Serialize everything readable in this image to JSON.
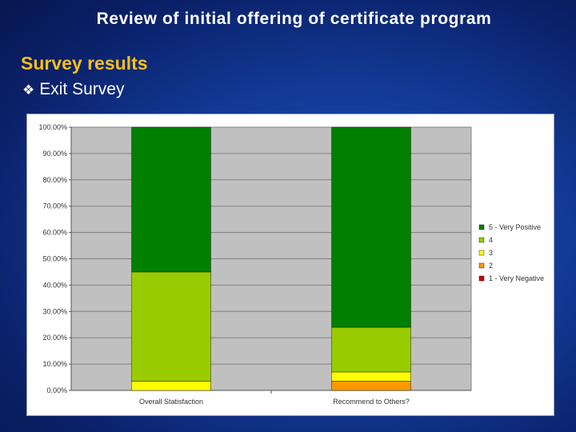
{
  "slide": {
    "title": "Review of initial offering of certificate program",
    "section": "Survey results",
    "bullet": "Exit Survey"
  },
  "chart_data": {
    "type": "bar",
    "stacked": true,
    "title": "",
    "xlabel": "",
    "ylabel": "",
    "ylim": [
      0,
      100
    ],
    "yticks": [
      "0.00%",
      "10.00%",
      "20.00%",
      "30.00%",
      "40.00%",
      "50.00%",
      "60.00%",
      "70.00%",
      "80.00%",
      "90.00%",
      "100.00%"
    ],
    "grid": true,
    "legend": "right",
    "categories": [
      "Overall Statisfaction",
      "Recommend to Others?"
    ],
    "series": [
      {
        "name": "1 - Very Negative",
        "color": "#cc0000",
        "values": [
          0,
          0
        ]
      },
      {
        "name": "2",
        "color": "#ff9900",
        "values": [
          0,
          3.5
        ]
      },
      {
        "name": "3",
        "color": "#ffff00",
        "values": [
          3.5,
          3.5
        ]
      },
      {
        "name": "4",
        "color": "#99cc00",
        "values": [
          41.5,
          17
        ]
      },
      {
        "name": "5 - Very Positive",
        "color": "#008000",
        "values": [
          55,
          76
        ]
      }
    ],
    "colors": {
      "plot_bg": "#c0c0c0",
      "grid": "#7f7f7f"
    }
  }
}
